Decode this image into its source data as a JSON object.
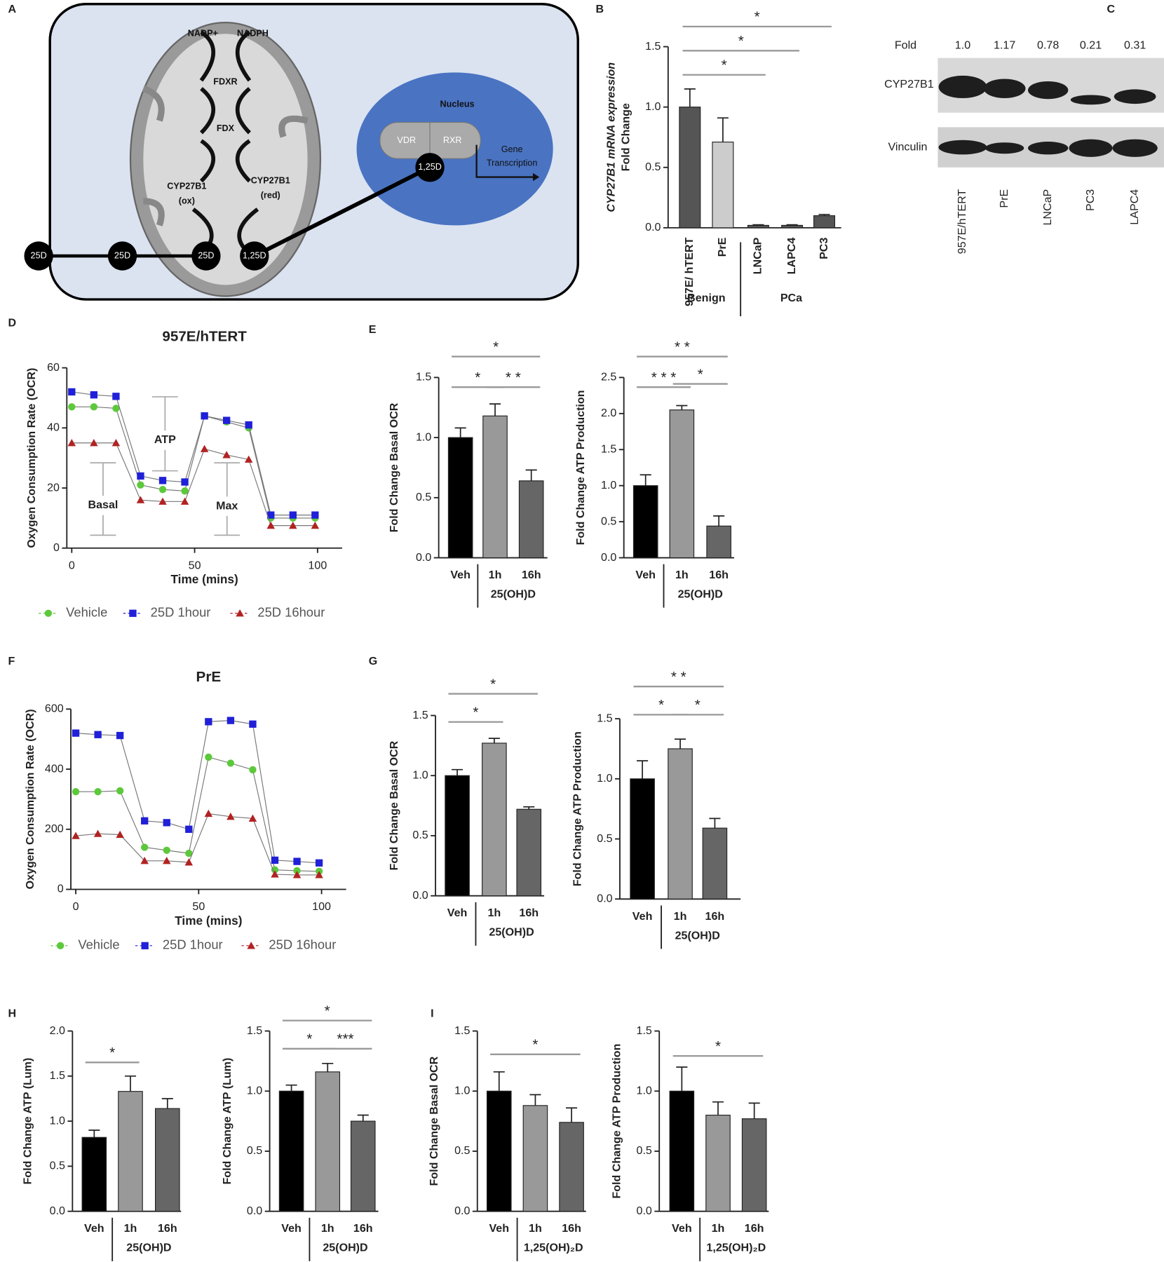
{
  "panel_labels": [
    "A",
    "B",
    "C",
    "D",
    "E",
    "F",
    "G",
    "H",
    "I"
  ],
  "diagram": {
    "nadp": "NADP+",
    "nadph": "NADPH",
    "fdxr": "FDXR",
    "fdx": "FDX",
    "cyp_ox": [
      "CYP27B1",
      "(ox)"
    ],
    "cyp_red": [
      "CYP27B1",
      "(red)"
    ],
    "nucleus": "Nucleus",
    "vdr": "VDR",
    "rxr": "RXR",
    "nuc_ligand": "1,25D",
    "gene": [
      "Gene",
      "Transcription"
    ],
    "d25": [
      "25D",
      "25D",
      "25D"
    ],
    "d125": "1,25D"
  },
  "blot": {
    "fold_label": "Fold",
    "fold_values": [
      "1.0",
      "1.17",
      "0.78",
      "0.21",
      "0.31"
    ],
    "rows": [
      "CYP27B1",
      "Vinculin"
    ],
    "lanes": [
      "957E/hTERT",
      "PrE",
      "LNCaP",
      "PC3",
      "LAPC4"
    ]
  },
  "chart_data": [
    {
      "type": "bar",
      "y_label": [
        "CYP27B1 mRNA expression",
        "Fold Change"
      ],
      "categories": [
        "957E/ hTERT",
        "PrE",
        "LNCaP",
        "LAPC4",
        "PC3"
      ],
      "values": [
        1.0,
        0.71,
        0.02,
        0.02,
        0.1
      ],
      "errors": [
        0.15,
        0.2,
        0.005,
        0.005,
        0.01
      ],
      "colors": [
        "#555555",
        "#cccccc",
        "#555555",
        "#555555",
        "#555555"
      ],
      "ylim": [
        0,
        1.5
      ],
      "yticks": [
        {
          "value": 0,
          "label": "0.0"
        },
        0.5,
        {
          "value": 1,
          "label": "1.0"
        },
        1.5
      ],
      "groups": [
        {
          "label": "Benign",
          "from": 0,
          "to": 1
        },
        {
          "label": "PCa",
          "from": 2,
          "to": 4
        }
      ],
      "significance": [
        {
          "label": "*",
          "from": 0,
          "to": 2
        },
        {
          "label": "*",
          "from": 0,
          "to": 3
        },
        {
          "label": "*",
          "from": 0,
          "to": 4
        }
      ]
    },
    {
      "type": "line",
      "title": "957E/hTERT",
      "y_label": "Oxygen Consumption Rate (OCR)",
      "x_label": "Time (mins)",
      "x": [
        0,
        9,
        18,
        28,
        37,
        46,
        54,
        63,
        72,
        81,
        90,
        99
      ],
      "series": [
        {
          "name": "Vehicle",
          "color": "#5cc93a",
          "marker": "circle",
          "values": [
            47,
            47,
            46.5,
            21,
            19.5,
            19,
            44,
            42,
            40,
            10,
            10,
            10
          ]
        },
        {
          "name": "25D 1hour",
          "color": "#2020d8",
          "marker": "square",
          "values": [
            52,
            51,
            50.5,
            24,
            22.5,
            22,
            44,
            42.5,
            41,
            11,
            11,
            11
          ]
        },
        {
          "name": "25D 16hour",
          "color": "#b22222",
          "marker": "triangle",
          "values": [
            35,
            35,
            35,
            16,
            15.5,
            15.5,
            33,
            31,
            29.5,
            7.5,
            7.5,
            7.5
          ]
        }
      ],
      "xlim": [
        -2,
        110
      ],
      "xticks": [
        0,
        50,
        100
      ],
      "ylim": [
        0,
        60
      ],
      "yticks": [
        0,
        20,
        40,
        60
      ],
      "annotations": [
        "ATP",
        "Basal",
        "Max"
      ]
    },
    {
      "type": "bar",
      "y_label": "Fold Change Basal OCR",
      "categories": [
        "Veh",
        "1h",
        "16h"
      ],
      "values": [
        1.0,
        1.18,
        0.64
      ],
      "errors": [
        0.08,
        0.1,
        0.09
      ],
      "colors": [
        "#000000",
        "#999999",
        "#666666"
      ],
      "ylim": [
        0,
        1.5
      ],
      "yticks": [
        {
          "value": 0,
          "label": "0.0"
        },
        0.5,
        {
          "value": 1,
          "label": "1.0"
        },
        1.5
      ],
      "groups": [
        {
          "label": "25(OH)D",
          "from": 1,
          "to": 2
        }
      ],
      "significance": [
        {
          "label": "*",
          "from": 0,
          "to": 1
        },
        {
          "label": "* *",
          "from": 1,
          "to": 2
        },
        {
          "label": "*",
          "from": 0,
          "to": 2
        }
      ]
    },
    {
      "type": "bar",
      "y_label": "Fold Change ATP Production",
      "categories": [
        "Veh",
        "1h",
        "16h"
      ],
      "values": [
        1.0,
        2.05,
        0.44
      ],
      "errors": [
        0.15,
        0.06,
        0.14
      ],
      "colors": [
        "#000000",
        "#999999",
        "#666666"
      ],
      "ylim": [
        0,
        2.5
      ],
      "yticks": [
        {
          "value": 0,
          "label": "0.0"
        },
        0.5,
        {
          "value": 1,
          "label": "1.0"
        },
        1.5,
        {
          "value": 2,
          "label": "2.0"
        },
        2.5
      ],
      "groups": [
        {
          "label": "25(OH)D",
          "from": 1,
          "to": 2
        }
      ],
      "significance": [
        {
          "label": "* * *",
          "from": 0,
          "to": 1
        },
        {
          "label": "*",
          "from": 1,
          "to": 2
        },
        {
          "label": "* *",
          "from": 0,
          "to": 2
        }
      ]
    },
    {
      "type": "line",
      "title": "PrE",
      "y_label": "Oxygen Consumption Rate (OCR)",
      "x_label": "Time (mins)",
      "x": [
        0,
        9,
        18,
        28,
        37,
        46,
        54,
        63,
        72,
        81,
        90,
        99
      ],
      "series": [
        {
          "name": "Vehicle",
          "color": "#5cc93a",
          "marker": "circle",
          "values": [
            325,
            325,
            328,
            140,
            130,
            120,
            440,
            420,
            398,
            65,
            62,
            60
          ]
        },
        {
          "name": "25D 1hour",
          "color": "#2020d8",
          "marker": "square",
          "values": [
            520,
            515,
            512,
            228,
            222,
            200,
            558,
            562,
            550,
            97,
            93,
            88
          ]
        },
        {
          "name": "25D 16hour",
          "color": "#b22222",
          "marker": "triangle",
          "values": [
            178,
            185,
            182,
            95,
            95,
            90,
            252,
            242,
            236,
            50,
            48,
            48
          ]
        }
      ],
      "xlim": [
        -2,
        110
      ],
      "xticks": [
        0,
        50,
        100
      ],
      "ylim": [
        0,
        600
      ],
      "yticks": [
        0,
        200,
        400,
        600
      ]
    },
    {
      "type": "bar",
      "y_label": "Fold Change Basal OCR",
      "categories": [
        "Veh",
        "1h",
        "16h"
      ],
      "values": [
        1.0,
        1.27,
        0.72
      ],
      "errors": [
        0.05,
        0.04,
        0.02
      ],
      "colors": [
        "#000000",
        "#999999",
        "#666666"
      ],
      "ylim": [
        0,
        1.5
      ],
      "yticks": [
        {
          "value": 0,
          "label": "0.0"
        },
        0.5,
        {
          "value": 1,
          "label": "1.0"
        },
        1.5
      ],
      "groups": [
        {
          "label": "25(OH)D",
          "from": 1,
          "to": 2
        }
      ],
      "significance": [
        {
          "label": "*",
          "from": 0,
          "to": 1
        },
        {
          "label": "*",
          "from": 0,
          "to": 2
        }
      ]
    },
    {
      "type": "bar",
      "y_label": "Fold Change ATP Production",
      "categories": [
        "Veh",
        "1h",
        "16h"
      ],
      "values": [
        1.0,
        1.25,
        0.59
      ],
      "errors": [
        0.15,
        0.08,
        0.08
      ],
      "colors": [
        "#000000",
        "#999999",
        "#666666"
      ],
      "ylim": [
        0,
        1.5
      ],
      "yticks": [
        {
          "value": 0,
          "label": "0.0"
        },
        0.5,
        {
          "value": 1,
          "label": "1.0"
        },
        1.5
      ],
      "groups": [
        {
          "label": "25(OH)D",
          "from": 1,
          "to": 2
        }
      ],
      "significance": [
        {
          "label": "*",
          "from": 0,
          "to": 1
        },
        {
          "label": "*",
          "from": 1,
          "to": 2
        },
        {
          "label": "* *",
          "from": 0,
          "to": 2
        }
      ]
    },
    {
      "type": "bar",
      "y_label": "Fold  Change ATP (Lum)",
      "categories": [
        "Veh",
        "1h",
        "16h"
      ],
      "values": [
        0.82,
        1.33,
        1.14
      ],
      "errors": [
        0.08,
        0.17,
        0.11
      ],
      "colors": [
        "#000000",
        "#999999",
        "#666666"
      ],
      "ylim": [
        0,
        2
      ],
      "yticks": [
        {
          "value": 0,
          "label": "0.0"
        },
        0.5,
        {
          "value": 1,
          "label": "1.0"
        },
        1.5,
        {
          "value": 2,
          "label": "2.0"
        }
      ],
      "groups": [
        {
          "label": "25(OH)D",
          "from": 1,
          "to": 2
        }
      ],
      "significance": [
        {
          "label": "*",
          "from": 0,
          "to": 1
        }
      ]
    },
    {
      "type": "bar",
      "y_label": "Fold  Change ATP (Lum)",
      "categories": [
        "Veh",
        "1h",
        "16h"
      ],
      "values": [
        1.0,
        1.16,
        0.75
      ],
      "errors": [
        0.05,
        0.07,
        0.05
      ],
      "colors": [
        "#000000",
        "#999999",
        "#666666"
      ],
      "ylim": [
        0,
        1.5
      ],
      "yticks": [
        {
          "value": 0,
          "label": "0.0"
        },
        0.5,
        {
          "value": 1,
          "label": "1.0"
        },
        1.5
      ],
      "groups": [
        {
          "label": "25(OH)D",
          "from": 1,
          "to": 2
        }
      ],
      "significance": [
        {
          "label": "*",
          "from": 0,
          "to": 1
        },
        {
          "label": "***",
          "from": 1,
          "to": 2
        },
        {
          "label": "*",
          "from": 0,
          "to": 2
        }
      ]
    },
    {
      "type": "bar",
      "y_label": "Fold Change Basal OCR",
      "categories": [
        "Veh",
        "1h",
        "16h"
      ],
      "values": [
        1.0,
        0.88,
        0.74
      ],
      "errors": [
        0.16,
        0.09,
        0.12
      ],
      "colors": [
        "#000000",
        "#999999",
        "#666666"
      ],
      "ylim": [
        0,
        1.5
      ],
      "yticks": [
        {
          "value": 0,
          "label": "0.0"
        },
        0.5,
        {
          "value": 1,
          "label": "1.0"
        },
        1.5
      ],
      "groups": [
        {
          "label": "1,25(OH)₂D",
          "from": 1,
          "to": 2
        }
      ],
      "significance": [
        {
          "label": "*",
          "from": 0,
          "to": 2
        }
      ]
    },
    {
      "type": "bar",
      "y_label": "Fold Change ATP Production",
      "categories": [
        "Veh",
        "1h",
        "16h"
      ],
      "values": [
        1.0,
        0.8,
        0.77
      ],
      "errors": [
        0.2,
        0.11,
        0.13
      ],
      "colors": [
        "#000000",
        "#999999",
        "#666666"
      ],
      "ylim": [
        0,
        1.5
      ],
      "yticks": [
        {
          "value": 0,
          "label": "0.0"
        },
        0.5,
        {
          "value": 1,
          "label": "1.0"
        },
        1.5
      ],
      "groups": [
        {
          "label": "1,25(OH)₂D",
          "from": 1,
          "to": 2
        }
      ],
      "significance": [
        {
          "label": "*",
          "from": 0,
          "to": 2
        }
      ]
    }
  ]
}
